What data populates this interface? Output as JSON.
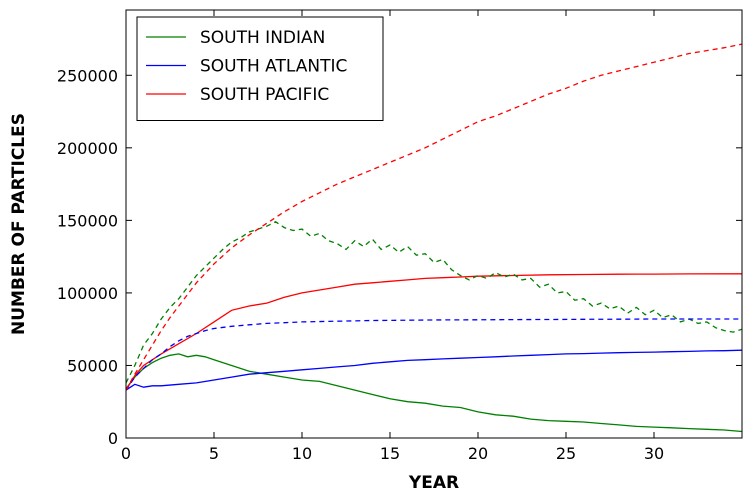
{
  "chart_data": {
    "type": "line",
    "title": "",
    "xlabel": "YEAR",
    "ylabel": "NUMBER OF PARTICLES",
    "xlim": [
      0,
      35
    ],
    "ylim": [
      0,
      295000
    ],
    "xticks": [
      0,
      5,
      10,
      15,
      20,
      25,
      30
    ],
    "yticks": [
      0,
      50000,
      100000,
      150000,
      200000,
      250000
    ],
    "grid": false,
    "legend": {
      "placement": "top-left"
    },
    "series": [
      {
        "name": "SOUTH INDIAN",
        "color": "#008000",
        "style": "solid",
        "x": [
          0,
          0.5,
          1,
          1.5,
          2,
          2.5,
          3,
          3.5,
          4,
          4.5,
          5,
          6,
          7,
          8,
          9,
          10,
          11,
          12,
          13,
          14,
          15,
          16,
          17,
          18,
          19,
          20,
          21,
          22,
          23,
          24,
          25,
          26,
          27,
          28,
          29,
          30,
          31,
          32,
          33,
          34,
          35
        ],
        "y": [
          34000,
          42000,
          48000,
          52000,
          55000,
          57000,
          58000,
          56000,
          57000,
          56000,
          54000,
          50000,
          46000,
          44000,
          42000,
          40000,
          39000,
          36000,
          33000,
          30000,
          27000,
          25000,
          24000,
          22000,
          21000,
          18000,
          16000,
          15000,
          13000,
          12000,
          11500,
          11000,
          10000,
          9000,
          8000,
          7500,
          7000,
          6500,
          6000,
          5500,
          4500
        ]
      },
      {
        "name": "SOUTH ATLANTIC",
        "color": "#0000ff",
        "style": "solid",
        "x": [
          0,
          0.5,
          1,
          1.5,
          2,
          3,
          4,
          5,
          6,
          7,
          8,
          9,
          10,
          11,
          12,
          13,
          14,
          15,
          16,
          17,
          18,
          19,
          20,
          21,
          22,
          23,
          24,
          25,
          26,
          27,
          28,
          29,
          30,
          31,
          32,
          33,
          34,
          35
        ],
        "y": [
          33000,
          37000,
          35000,
          36000,
          36000,
          37000,
          38000,
          40000,
          42000,
          44000,
          45000,
          46000,
          47000,
          48000,
          49000,
          50000,
          51500,
          52500,
          53500,
          54000,
          54500,
          55000,
          55500,
          56000,
          56500,
          57000,
          57500,
          58000,
          58200,
          58500,
          58800,
          59000,
          59200,
          59500,
          59700,
          60000,
          60200,
          60500
        ]
      },
      {
        "name": "SOUTH PACIFIC",
        "color": "#ff0000",
        "style": "solid",
        "x": [
          0,
          0.5,
          1,
          2,
          3,
          4,
          5,
          6,
          7,
          8,
          9,
          10,
          11,
          12,
          13,
          14,
          15,
          16,
          17,
          18,
          19,
          20,
          22,
          24,
          26,
          28,
          30,
          32,
          35
        ],
        "y": [
          33000,
          43000,
          50000,
          58000,
          65000,
          72000,
          80000,
          88000,
          91000,
          93000,
          97000,
          100000,
          102000,
          104000,
          106000,
          107000,
          108000,
          109000,
          110000,
          110500,
          111000,
          111500,
          112000,
          112500,
          112700,
          112900,
          113000,
          113100,
          113200
        ]
      },
      {
        "name": "",
        "color": "#008000",
        "style": "dashed",
        "x": [
          0,
          0.5,
          1,
          1.5,
          2,
          2.5,
          3,
          3.5,
          4,
          4.5,
          5,
          5.5,
          6,
          6.5,
          7,
          7.5,
          8,
          8.5,
          9,
          9.5,
          10,
          10.5,
          11,
          11.5,
          12,
          12.5,
          13,
          13.5,
          14,
          14.5,
          15,
          15.5,
          16,
          16.5,
          17,
          17.5,
          18,
          18.5,
          19,
          19.5,
          20,
          20.5,
          21,
          21.5,
          22,
          22.5,
          23,
          23.5,
          24,
          24.5,
          25,
          25.5,
          26,
          26.5,
          27,
          27.5,
          28,
          28.5,
          29,
          29.5,
          30,
          30.5,
          31,
          31.5,
          32,
          32.5,
          33,
          33.5,
          34,
          34.5,
          35
        ],
        "y": [
          38000,
          50000,
          64000,
          72000,
          82000,
          90000,
          96000,
          104000,
          112000,
          118000,
          124000,
          130000,
          135000,
          138000,
          142000,
          144000,
          146000,
          149000,
          145000,
          143000,
          144000,
          139000,
          141000,
          136000,
          134000,
          130000,
          136000,
          132000,
          137000,
          130000,
          133000,
          128000,
          132000,
          126000,
          127000,
          121000,
          123000,
          116000,
          112000,
          109000,
          112000,
          110000,
          114000,
          111000,
          113000,
          109000,
          110000,
          104000,
          106000,
          100000,
          101000,
          95000,
          96000,
          91000,
          93000,
          89000,
          91000,
          86000,
          90000,
          85000,
          88000,
          83000,
          85000,
          80000,
          82000,
          79000,
          80000,
          76000,
          74000,
          73000,
          75000
        ]
      },
      {
        "name": "",
        "color": "#0000ff",
        "style": "dashed",
        "x": [
          0,
          0.5,
          1,
          1.5,
          2,
          2.5,
          3,
          3.5,
          4,
          4.5,
          5,
          6,
          7,
          8,
          9,
          10,
          12,
          14,
          16,
          18,
          20,
          22,
          24,
          26,
          28,
          30,
          32,
          35
        ],
        "y": [
          33000,
          42000,
          48000,
          54000,
          58000,
          63000,
          67000,
          70000,
          72000,
          74000,
          75500,
          77000,
          78000,
          79000,
          79500,
          80000,
          80500,
          81000,
          81200,
          81400,
          81500,
          81600,
          81700,
          81800,
          81900,
          82000,
          82000,
          82000
        ]
      },
      {
        "name": "",
        "color": "#ff0000",
        "style": "dashed",
        "x": [
          0,
          0.5,
          1,
          1.5,
          2,
          2.5,
          3,
          3.5,
          4,
          5,
          6,
          7,
          8,
          9,
          10,
          11,
          12,
          13,
          14,
          15,
          16,
          17,
          18,
          19,
          20,
          21,
          22,
          23,
          24,
          25,
          26,
          27,
          28,
          29,
          30,
          31,
          32,
          33,
          34,
          35
        ],
        "y": [
          33000,
          44000,
          54000,
          64000,
          74000,
          83000,
          91000,
          99000,
          107000,
          120000,
          131000,
          140000,
          148000,
          156000,
          163000,
          169000,
          175000,
          180000,
          185000,
          190000,
          195000,
          200000,
          206000,
          212000,
          218000,
          222000,
          227000,
          232000,
          237000,
          241000,
          246000,
          250000,
          253000,
          256000,
          259000,
          262000,
          265000,
          267000,
          269000,
          271500
        ]
      }
    ]
  }
}
